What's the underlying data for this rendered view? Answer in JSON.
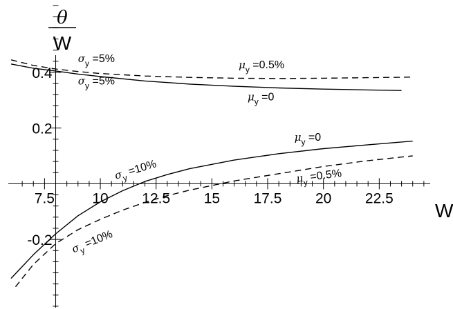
{
  "chart_data": {
    "type": "line",
    "ylabel": {
      "numerator": "θ",
      "denominator": "W"
    },
    "xlabel": "W",
    "xlim": [
      6.0,
      25.0
    ],
    "ylim": [
      -0.45,
      0.66
    ],
    "x_ticks": [
      7.5,
      10,
      12.5,
      15,
      17.5,
      20,
      22.5
    ],
    "x_tick_labels": [
      "7.5",
      "10",
      "12.5",
      "15",
      "17.5",
      "20",
      "22.5"
    ],
    "y_ticks": [
      -0.2,
      0.2,
      0.4
    ],
    "y_tick_labels": [
      "-0.2",
      "0.2",
      "0.4"
    ],
    "grid": false,
    "legend": "none",
    "series": [
      {
        "style": "dashed",
        "x": [
          6.0,
          7.0,
          8.0,
          9.0,
          10.0,
          12.0,
          14.0,
          16.0,
          18.0,
          20.0,
          22.0,
          24.0
        ],
        "y": [
          0.445,
          0.425,
          0.412,
          0.403,
          0.396,
          0.387,
          0.382,
          0.379,
          0.378,
          0.379,
          0.381,
          0.383
        ]
      },
      {
        "style": "solid",
        "x": [
          6.0,
          7.0,
          8.0,
          9.0,
          10.0,
          12.0,
          14.0,
          16.0,
          18.0,
          20.0,
          22.0,
          23.5
        ],
        "y": [
          0.43,
          0.415,
          0.405,
          0.394,
          0.385,
          0.369,
          0.358,
          0.35,
          0.344,
          0.34,
          0.337,
          0.335
        ]
      },
      {
        "style": "solid",
        "x": [
          6.0,
          7.0,
          8.0,
          9.0,
          10.0,
          11.0,
          12.0,
          13.0,
          14.0,
          16.0,
          18.0,
          20.0,
          22.0,
          24.0
        ],
        "y": [
          -0.34,
          -0.255,
          -0.18,
          -0.115,
          -0.065,
          -0.025,
          0.008,
          0.033,
          0.054,
          0.085,
          0.108,
          0.126,
          0.14,
          0.153
        ]
      },
      {
        "style": "dashed",
        "x": [
          6.2,
          7.0,
          8.0,
          9.0,
          10.0,
          11.0,
          12.0,
          13.0,
          14.0,
          16.0,
          18.0,
          20.0,
          22.0,
          24.0
        ],
        "y": [
          -0.37,
          -0.29,
          -0.215,
          -0.165,
          -0.128,
          -0.095,
          -0.067,
          -0.043,
          -0.023,
          0.01,
          0.036,
          0.062,
          0.083,
          0.1
        ]
      }
    ],
    "annotations": [
      {
        "greek": "σ",
        "sub": "y",
        "rest": " =5%",
        "x": 9.0,
        "y": 0.437,
        "rotate": 0
      },
      {
        "greek": "μ",
        "sub": "y",
        "rest": " =0.5%",
        "x": 16.2,
        "y": 0.415,
        "rotate": 0
      },
      {
        "greek": "σ",
        "sub": "y",
        "rest": " =5%",
        "x": 9.0,
        "y": 0.357,
        "rotate": 0
      },
      {
        "greek": "μ",
        "sub": "y",
        "rest": " =0",
        "x": 16.6,
        "y": 0.3,
        "rotate": 0
      },
      {
        "greek": "σ",
        "sub": "y",
        "rest": " =10%",
        "x": 10.7,
        "y": 0.016,
        "rotate": -17
      },
      {
        "greek": "μ",
        "sub": "y",
        "rest": " =0",
        "x": 18.7,
        "y": 0.155,
        "rotate": 0
      },
      {
        "greek": "μ",
        "sub": "y",
        "rest": " =0.5%",
        "x": 18.8,
        "y": 0.006,
        "rotate": -7
      },
      {
        "greek": "σ",
        "sub": "y",
        "rest": " =10%",
        "x": 8.8,
        "y": -0.248,
        "rotate": -22
      }
    ]
  }
}
